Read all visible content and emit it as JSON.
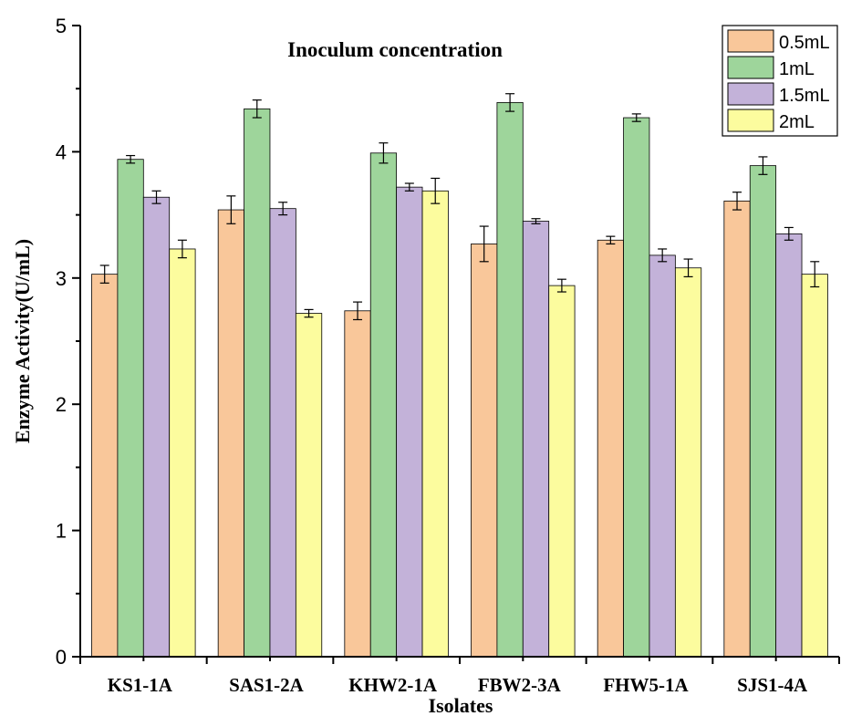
{
  "chart_data": {
    "type": "bar",
    "title": "Inoculum concentration",
    "xlabel": "Isolates",
    "ylabel": "Enzyme Activity(U/mL)",
    "ylim": [
      0,
      5
    ],
    "yticks": [
      "0",
      "1",
      "2",
      "3",
      "4",
      "5"
    ],
    "categories": [
      "KS1-1A",
      "SAS1-2A",
      "KHW2-1A",
      "FBW2-3A",
      "FHW5-1A",
      "SJS1-4A"
    ],
    "legend_position": "top-right",
    "grid": false,
    "series": [
      {
        "name": "0.5mL",
        "color": "#F9C79A",
        "values": [
          3.03,
          3.54,
          2.74,
          3.27,
          3.3,
          3.61
        ],
        "errors": [
          0.07,
          0.11,
          0.07,
          0.14,
          0.03,
          0.07
        ]
      },
      {
        "name": "1mL",
        "color": "#9ED59B",
        "values": [
          3.94,
          4.34,
          3.99,
          4.39,
          4.27,
          3.89
        ],
        "errors": [
          0.03,
          0.07,
          0.08,
          0.07,
          0.03,
          0.07
        ]
      },
      {
        "name": "1.5mL",
        "color": "#C3B2D9",
        "values": [
          3.64,
          3.55,
          3.72,
          3.45,
          3.18,
          3.35
        ],
        "errors": [
          0.05,
          0.05,
          0.03,
          0.02,
          0.05,
          0.05
        ]
      },
      {
        "name": "2mL",
        "color": "#FCFC9E",
        "values": [
          3.23,
          2.72,
          3.69,
          2.94,
          3.08,
          3.03
        ],
        "errors": [
          0.07,
          0.03,
          0.1,
          0.05,
          0.07,
          0.1
        ]
      }
    ]
  }
}
